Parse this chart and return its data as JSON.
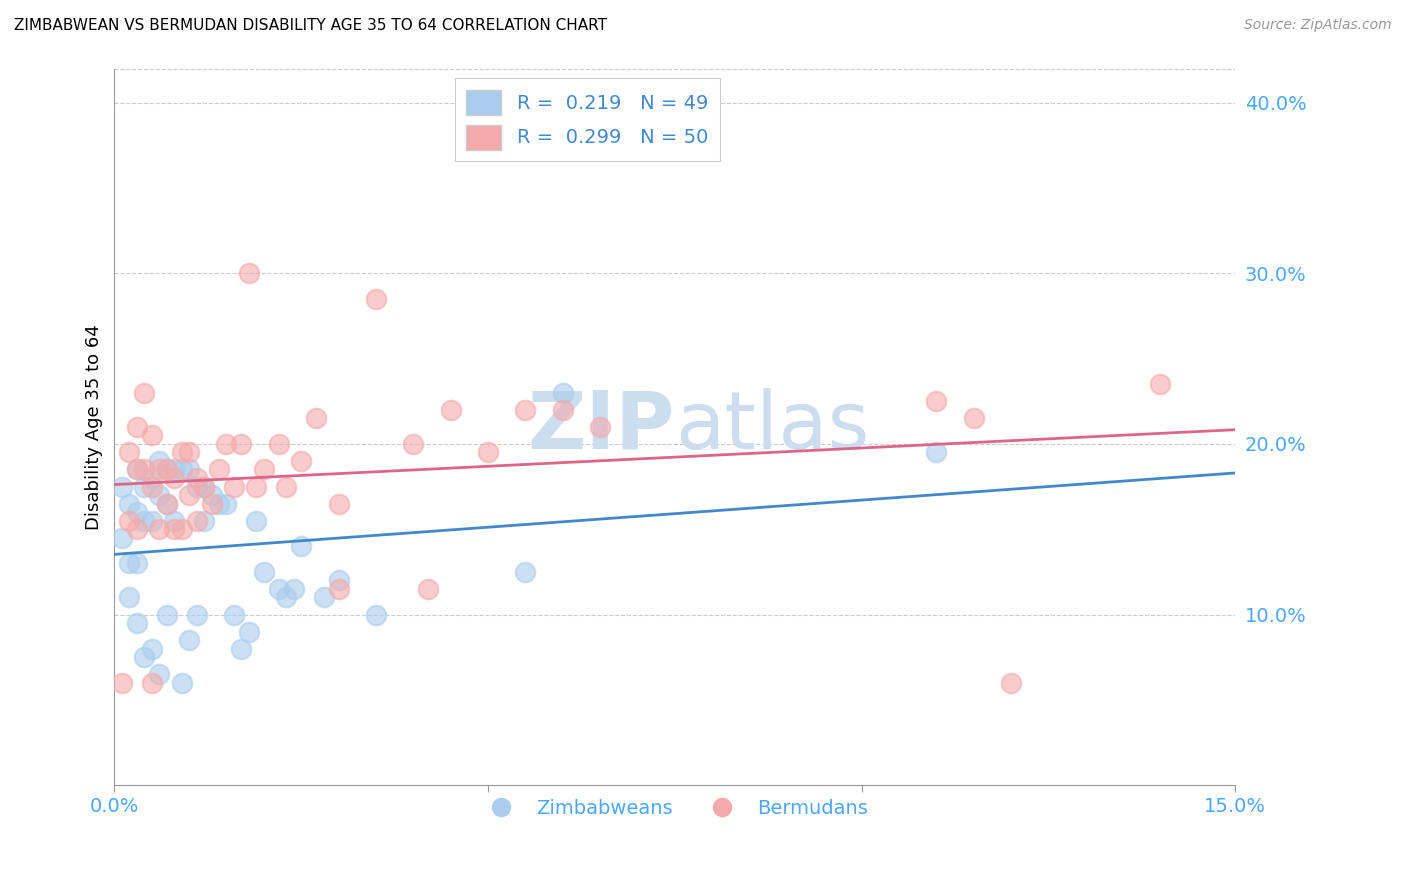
{
  "title": "ZIMBABWEAN VS BERMUDAN DISABILITY AGE 35 TO 64 CORRELATION CHART",
  "source": "Source: ZipAtlas.com",
  "tick_color": "#4da6ff",
  "ylabel": "Disability Age 35 to 64",
  "xlim": [
    0.0,
    0.15
  ],
  "ylim": [
    0.0,
    0.42
  ],
  "xtick_vals": [
    0.0,
    0.05,
    0.1,
    0.15
  ],
  "xtick_labels": [
    "0.0%",
    "",
    "",
    "15.0%"
  ],
  "ytick_vals": [
    0.1,
    0.2,
    0.3,
    0.4
  ],
  "ytick_labels": [
    "10.0%",
    "20.0%",
    "30.0%",
    "40.0%"
  ],
  "legend_r1": "R =  0.219   N = 49",
  "legend_r2": "R =  0.299   N = 50",
  "legend_label1": "Zimbabweans",
  "legend_label2": "Bermudans",
  "blue_color": "#aaccee",
  "pink_color": "#f4aaaa",
  "blue_line_color": "#4488cc",
  "pink_line_color": "#dd6688",
  "watermark_zip": "ZIP",
  "watermark_atlas": "atlas",
  "watermark_color": "#ccddf0",
  "blue_scatter_x": [
    0.001,
    0.001,
    0.002,
    0.002,
    0.002,
    0.003,
    0.003,
    0.003,
    0.003,
    0.004,
    0.004,
    0.004,
    0.005,
    0.005,
    0.005,
    0.006,
    0.006,
    0.006,
    0.007,
    0.007,
    0.007,
    0.008,
    0.008,
    0.009,
    0.009,
    0.01,
    0.01,
    0.011,
    0.011,
    0.012,
    0.012,
    0.013,
    0.014,
    0.015,
    0.016,
    0.017,
    0.018,
    0.019,
    0.02,
    0.022,
    0.023,
    0.024,
    0.025,
    0.028,
    0.03,
    0.035,
    0.055,
    0.06,
    0.11
  ],
  "blue_scatter_y": [
    0.175,
    0.145,
    0.165,
    0.13,
    0.11,
    0.185,
    0.16,
    0.13,
    0.095,
    0.175,
    0.155,
    0.075,
    0.18,
    0.155,
    0.08,
    0.19,
    0.17,
    0.065,
    0.185,
    0.165,
    0.1,
    0.185,
    0.155,
    0.185,
    0.06,
    0.185,
    0.085,
    0.175,
    0.1,
    0.175,
    0.155,
    0.17,
    0.165,
    0.165,
    0.1,
    0.08,
    0.09,
    0.155,
    0.125,
    0.115,
    0.11,
    0.115,
    0.14,
    0.11,
    0.12,
    0.1,
    0.125,
    0.23,
    0.195
  ],
  "pink_scatter_x": [
    0.001,
    0.002,
    0.002,
    0.003,
    0.003,
    0.003,
    0.004,
    0.004,
    0.005,
    0.005,
    0.005,
    0.006,
    0.006,
    0.007,
    0.007,
    0.008,
    0.008,
    0.009,
    0.009,
    0.01,
    0.01,
    0.011,
    0.011,
    0.012,
    0.013,
    0.014,
    0.015,
    0.016,
    0.017,
    0.018,
    0.019,
    0.02,
    0.022,
    0.023,
    0.025,
    0.027,
    0.03,
    0.03,
    0.035,
    0.04,
    0.042,
    0.045,
    0.05,
    0.055,
    0.06,
    0.065,
    0.11,
    0.115,
    0.12,
    0.14
  ],
  "pink_scatter_y": [
    0.06,
    0.195,
    0.155,
    0.21,
    0.185,
    0.15,
    0.23,
    0.185,
    0.205,
    0.175,
    0.06,
    0.185,
    0.15,
    0.185,
    0.165,
    0.18,
    0.15,
    0.195,
    0.15,
    0.195,
    0.17,
    0.18,
    0.155,
    0.175,
    0.165,
    0.185,
    0.2,
    0.175,
    0.2,
    0.3,
    0.175,
    0.185,
    0.2,
    0.175,
    0.19,
    0.215,
    0.165,
    0.115,
    0.285,
    0.2,
    0.115,
    0.22,
    0.195,
    0.22,
    0.22,
    0.21,
    0.225,
    0.215,
    0.06,
    0.235
  ]
}
